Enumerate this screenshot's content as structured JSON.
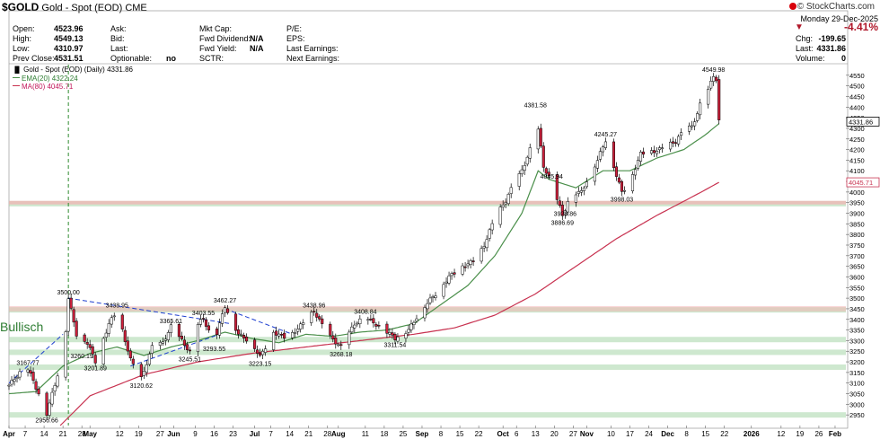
{
  "header": {
    "symbol": "$GOLD",
    "name": "Gold - Spot (EOD)",
    "exchange": "CME",
    "brand": "© StockCharts.com",
    "date": "Monday  29-Dec-2025",
    "change_pct": "-4.41%",
    "quote_left": [
      {
        "label": "Open:",
        "value": "4523.96"
      },
      {
        "label": "High:",
        "value": "4549.13"
      },
      {
        "label": "Low:",
        "value": "4310.97"
      },
      {
        "label": "Prev Close:",
        "value": "4531.51"
      }
    ],
    "quote_mid1": [
      {
        "label": "Ask:",
        "value": ""
      },
      {
        "label": "Bid:",
        "value": ""
      },
      {
        "label": "Last:",
        "value": ""
      },
      {
        "label": "Optionable:",
        "value": "no"
      }
    ],
    "quote_mid2": [
      {
        "label": "Mkt Cap:",
        "value": ""
      },
      {
        "label": "Fwd Dividend:",
        "value": "N/A"
      },
      {
        "label": "Fwd Yield:",
        "value": "N/A"
      },
      {
        "label": "SCTR:",
        "value": ""
      }
    ],
    "quote_mid3": [
      {
        "label": "P/E:",
        "value": ""
      },
      {
        "label": "EPS:",
        "value": ""
      },
      {
        "label": "Last Earnings:",
        "value": ""
      },
      {
        "label": "Next Earnings:",
        "value": ""
      }
    ],
    "quote_right": [
      {
        "label": "Chg:",
        "value": "-199.65"
      },
      {
        "label": "Last:",
        "value": "4331.86"
      },
      {
        "label": "Volume:",
        "value": "0"
      }
    ]
  },
  "legend": {
    "title": "Gold - Spot (EOD) (Daily) 4331.86",
    "ema": "EMA(20) 4322.24",
    "ma": "MA(80) 4045.71"
  },
  "annotation_text": "Bullisch",
  "colors": {
    "up": "#ffffff",
    "down": "#d0203c",
    "ema": "#4a8f4a",
    "ma": "#c83250",
    "support": "#a5d6a7",
    "resistance": "#f4b0b0",
    "trend": "#1e3fd0",
    "vline": "#2e8b2e"
  },
  "chart_data": {
    "type": "candlestick",
    "title": "Gold - Spot (EOD) (Daily) 4331.86",
    "ylim": [
      2900,
      4600
    ],
    "y_ticks": [
      2950,
      3000,
      3050,
      3100,
      3150,
      3200,
      3250,
      3300,
      3350,
      3400,
      3450,
      3500,
      3550,
      3600,
      3650,
      3700,
      3750,
      3800,
      3850,
      3900,
      3950,
      4000,
      4050,
      4100,
      4150,
      4200,
      4250,
      4300,
      4350,
      4400,
      4450,
      4500,
      4550
    ],
    "x_ticks": [
      {
        "label": "Apr",
        "day": 0
      },
      {
        "label": "7",
        "day": 6
      },
      {
        "label": "14",
        "day": 13
      },
      {
        "label": "21",
        "day": 20
      },
      {
        "label": "28",
        "day": 27
      },
      {
        "label": "May",
        "day": 30
      },
      {
        "label": "12",
        "day": 41
      },
      {
        "label": "19",
        "day": 48
      },
      {
        "label": "27",
        "day": 56
      },
      {
        "label": "Jun",
        "day": 61
      },
      {
        "label": "9",
        "day": 69
      },
      {
        "label": "16",
        "day": 76
      },
      {
        "label": "23",
        "day": 83
      },
      {
        "label": "Jul",
        "day": 91
      },
      {
        "label": "7",
        "day": 97
      },
      {
        "label": "14",
        "day": 104
      },
      {
        "label": "21",
        "day": 111
      },
      {
        "label": "28",
        "day": 118
      },
      {
        "label": "Aug",
        "day": 122
      },
      {
        "label": "11",
        "day": 132
      },
      {
        "label": "18",
        "day": 139
      },
      {
        "label": "25",
        "day": 146
      },
      {
        "label": "Sep",
        "day": 153
      },
      {
        "label": "8",
        "day": 160
      },
      {
        "label": "15",
        "day": 167
      },
      {
        "label": "22",
        "day": 174
      },
      {
        "label": "Oct",
        "day": 183
      },
      {
        "label": "6",
        "day": 188
      },
      {
        "label": "13",
        "day": 195
      },
      {
        "label": "20",
        "day": 202
      },
      {
        "label": "27",
        "day": 209
      },
      {
        "label": "Nov",
        "day": 214
      },
      {
        "label": "10",
        "day": 223
      },
      {
        "label": "17",
        "day": 230
      },
      {
        "label": "24",
        "day": 237
      },
      {
        "label": "Dec",
        "day": 244
      },
      {
        "label": "8",
        "day": 251
      },
      {
        "label": "15",
        "day": 258
      },
      {
        "label": "22",
        "day": 265
      },
      {
        "label": "2026",
        "day": 275
      },
      {
        "label": "12",
        "day": 286
      },
      {
        "label": "19",
        "day": 293
      },
      {
        "label": "26",
        "day": 300
      },
      {
        "label": "Feb",
        "day": 306
      }
    ],
    "last_price": 4331.86,
    "ma_last": 4045.71,
    "price_keypoints": [
      [
        0,
        3090
      ],
      [
        4,
        3150
      ],
      [
        7,
        3167.77
      ],
      [
        11,
        3050
      ],
      [
        14,
        2956.66
      ],
      [
        18,
        3140
      ],
      [
        21,
        3350
      ],
      [
        22,
        3500
      ],
      [
        25,
        3330
      ],
      [
        29,
        3290
      ],
      [
        32,
        3201.89
      ],
      [
        37,
        3380
      ],
      [
        40,
        3438.95
      ],
      [
        45,
        3210
      ],
      [
        49,
        3120.62
      ],
      [
        53,
        3270
      ],
      [
        57,
        3290
      ],
      [
        60,
        3365.61
      ],
      [
        64,
        3300
      ],
      [
        67,
        3245.51
      ],
      [
        70,
        3380
      ],
      [
        72,
        3403.55
      ],
      [
        76,
        3293.55
      ],
      [
        80,
        3462.27
      ],
      [
        85,
        3330
      ],
      [
        90,
        3290
      ],
      [
        93,
        3223.15
      ],
      [
        98,
        3340
      ],
      [
        103,
        3310
      ],
      [
        108,
        3370
      ],
      [
        113,
        3438.96
      ],
      [
        118,
        3330
      ],
      [
        123,
        3268.18
      ],
      [
        128,
        3380
      ],
      [
        132,
        3408.84
      ],
      [
        138,
        3360
      ],
      [
        143,
        3311.54
      ],
      [
        148,
        3350
      ],
      [
        153,
        3450
      ],
      [
        158,
        3520
      ],
      [
        163,
        3600
      ],
      [
        168,
        3650
      ],
      [
        173,
        3680
      ],
      [
        176,
        3750
      ],
      [
        180,
        3880
      ],
      [
        184,
        3960
      ],
      [
        187,
        4040
      ],
      [
        190,
        4100
      ],
      [
        193,
        4200
      ],
      [
        195,
        4381.58
      ],
      [
        198,
        4120
      ],
      [
        201,
        4045.94
      ],
      [
        204,
        3928.86
      ],
      [
        205,
        3886.69
      ],
      [
        208,
        3990
      ],
      [
        212,
        4000
      ],
      [
        215,
        4080
      ],
      [
        218,
        4150
      ],
      [
        221,
        4245.27
      ],
      [
        224,
        4120
      ],
      [
        227,
        3998.03
      ],
      [
        230,
        4050
      ],
      [
        234,
        4180
      ],
      [
        238,
        4190
      ],
      [
        241,
        4200
      ],
      [
        244,
        4220
      ],
      [
        247,
        4240
      ],
      [
        250,
        4290
      ],
      [
        253,
        4310
      ],
      [
        255,
        4370
      ],
      [
        257,
        4450
      ],
      [
        259,
        4480
      ],
      [
        261,
        4549.98
      ],
      [
        262,
        4530
      ],
      [
        263,
        4331.86
      ]
    ],
    "ema20_keypoints": [
      [
        0,
        3050
      ],
      [
        10,
        3060
      ],
      [
        20,
        3180
      ],
      [
        30,
        3240
      ],
      [
        40,
        3270
      ],
      [
        50,
        3230
      ],
      [
        60,
        3270
      ],
      [
        70,
        3300
      ],
      [
        80,
        3340
      ],
      [
        90,
        3310
      ],
      [
        100,
        3290
      ],
      [
        110,
        3330
      ],
      [
        120,
        3320
      ],
      [
        130,
        3340
      ],
      [
        140,
        3350
      ],
      [
        150,
        3380
      ],
      [
        160,
        3470
      ],
      [
        170,
        3560
      ],
      [
        180,
        3700
      ],
      [
        190,
        3900
      ],
      [
        196,
        4100
      ],
      [
        200,
        4060
      ],
      [
        210,
        4020
      ],
      [
        220,
        4100
      ],
      [
        230,
        4100
      ],
      [
        240,
        4160
      ],
      [
        250,
        4200
      ],
      [
        258,
        4270
      ],
      [
        263,
        4322.24
      ]
    ],
    "ma80_keypoints": [
      [
        19,
        2900
      ],
      [
        30,
        3040
      ],
      [
        50,
        3140
      ],
      [
        70,
        3200
      ],
      [
        90,
        3240
      ],
      [
        110,
        3270
      ],
      [
        130,
        3300
      ],
      [
        150,
        3330
      ],
      [
        165,
        3360
      ],
      [
        180,
        3420
      ],
      [
        195,
        3520
      ],
      [
        210,
        3650
      ],
      [
        225,
        3780
      ],
      [
        240,
        3890
      ],
      [
        255,
        3990
      ],
      [
        263,
        4045.71
      ]
    ],
    "price_labels": [
      {
        "text": "3500.00",
        "day": 22,
        "value": 3500
      },
      {
        "text": "3438.95",
        "day": 40,
        "value": 3438.95
      },
      {
        "text": "3365.61",
        "day": 60,
        "value": 3365.61
      },
      {
        "text": "3403.55",
        "day": 72,
        "value": 3403.55
      },
      {
        "text": "3462.27",
        "day": 80,
        "value": 3462.27
      },
      {
        "text": "3438.96",
        "day": 113,
        "value": 3438.96
      },
      {
        "text": "3408.84",
        "day": 132,
        "value": 3408.84
      },
      {
        "text": "4381.58",
        "day": 195,
        "value": 4381.58
      },
      {
        "text": "4045.94",
        "day": 201,
        "value": 4045.94
      },
      {
        "text": "4245.27",
        "day": 221,
        "value": 4245.27
      },
      {
        "text": "4549.98",
        "day": 261,
        "value": 4549.98
      },
      {
        "text": "3167.77",
        "day": 7,
        "value": 3167.77,
        "below": false
      },
      {
        "text": "3260.19",
        "day": 27,
        "value": 3260.19,
        "below": true
      },
      {
        "text": "3201.89",
        "day": 32,
        "value": 3201.89,
        "below": true
      },
      {
        "text": "3120.62",
        "day": 49,
        "value": 3120.62,
        "below": true
      },
      {
        "text": "3245.51",
        "day": 67,
        "value": 3245.51,
        "below": true
      },
      {
        "text": "3293.55",
        "day": 76,
        "value": 3293.55,
        "below": true
      },
      {
        "text": "3223.15",
        "day": 93,
        "value": 3223.15,
        "below": true
      },
      {
        "text": "3268.18",
        "day": 123,
        "value": 3268.18,
        "below": true
      },
      {
        "text": "3311.54",
        "day": 143,
        "value": 3311.54,
        "below": true
      },
      {
        "text": "3928.86",
        "day": 206,
        "value": 3928.86,
        "below": true
      },
      {
        "text": "3886.69",
        "day": 205,
        "value": 3886.69,
        "below": true
      },
      {
        "text": "3998.03",
        "day": 227,
        "value": 3998.03,
        "below": true
      },
      {
        "text": "2956.66",
        "day": 14,
        "value": 2956.66,
        "below": true
      }
    ],
    "support_levels": [
      2950,
      3175,
      3245,
      3305,
      3445,
      3945
    ],
    "resistance_levels": [
      3950
    ],
    "vertical_marker_day": 22,
    "trendlines": [
      {
        "from": [
          0,
          3100
        ],
        "to": [
          20,
          3330
        ]
      },
      {
        "from": [
          22,
          3500
        ],
        "to": [
          82,
          3380
        ]
      },
      {
        "from": [
          45,
          3180
        ],
        "to": [
          78,
          3330
        ]
      },
      {
        "from": [
          80,
          3450
        ],
        "to": [
          105,
          3330
        ]
      }
    ]
  }
}
